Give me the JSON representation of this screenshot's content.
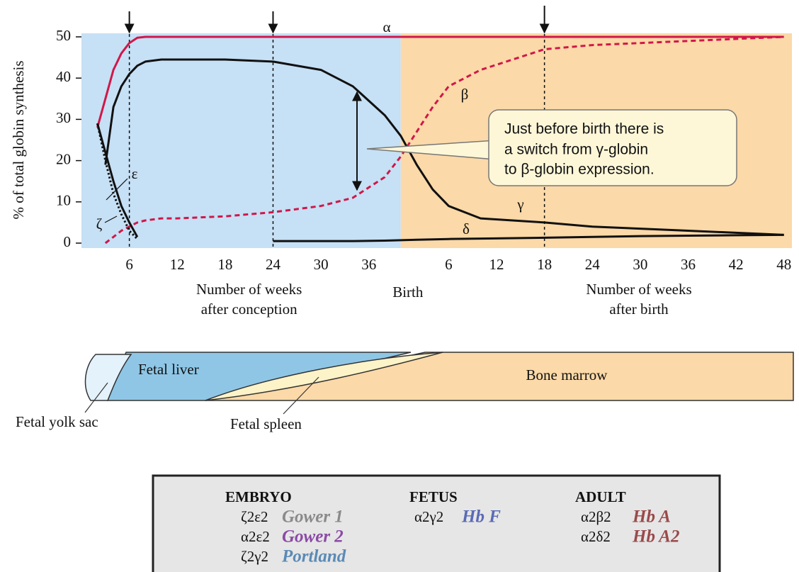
{
  "chart_data": {
    "type": "line",
    "ylabel": "% of total globin synthesis",
    "xlabel_left": [
      "Number of weeks",
      "after conception"
    ],
    "xlabel_right": [
      "Number of weeks",
      "after birth"
    ],
    "birth": {
      "value": 40,
      "label": "Birth"
    },
    "xlim": [
      0,
      89
    ],
    "ylim": [
      0,
      50
    ],
    "yticks": [
      0,
      10,
      20,
      30,
      40,
      50
    ],
    "xticks": [
      6,
      12,
      18,
      24,
      30,
      36,
      {
        "value": 46,
        "label": "6"
      },
      {
        "value": 52,
        "label": "12"
      },
      {
        "value": 58,
        "label": "18"
      },
      {
        "value": 64,
        "label": "24"
      },
      {
        "value": 70,
        "label": "30"
      },
      {
        "value": 76,
        "label": "36"
      },
      {
        "value": 82,
        "label": "42"
      },
      {
        "value": 88,
        "label": "48"
      }
    ],
    "arrows": [
      6,
      24,
      58
    ],
    "annotation": [
      "Just before birth there is",
      "a switch from γ-globin",
      "to β-globin expression."
    ],
    "x": [
      2,
      3,
      4,
      5,
      6,
      7,
      8,
      10,
      12,
      18,
      24,
      30,
      34,
      38,
      40,
      42,
      44,
      46,
      50,
      58,
      64,
      70,
      76,
      82,
      88
    ],
    "series": [
      {
        "name": "α",
        "color": "#d0174a",
        "style": "solid",
        "values": [
          28,
          35,
          42,
          46,
          48.5,
          49.8,
          50,
          50,
          50,
          50,
          50,
          50,
          50,
          50,
          50,
          50,
          50,
          50,
          50,
          50,
          50,
          50,
          50,
          50,
          50
        ]
      },
      {
        "name": "β",
        "color": "#d0174a",
        "style": "dashed",
        "values": [
          null,
          0,
          1.5,
          3,
          4,
          5,
          5.5,
          6,
          6,
          6.5,
          7.5,
          9,
          11,
          16,
          21,
          27,
          33,
          38,
          42,
          47,
          48,
          48.5,
          49,
          49.5,
          50
        ]
      },
      {
        "name": "γ",
        "color": "#111111",
        "style": "solid",
        "values": [
          null,
          19,
          33,
          38,
          41,
          43,
          44,
          44.5,
          44.5,
          44.5,
          44,
          42,
          38,
          31,
          26,
          19,
          13,
          9,
          6,
          5,
          4,
          3.5,
          3,
          2.5,
          2
        ]
      },
      {
        "name": "δ",
        "color": "#111111",
        "style": "solid",
        "values": [
          null,
          null,
          null,
          null,
          null,
          null,
          null,
          null,
          null,
          null,
          0.5,
          0.5,
          0.5,
          0.6,
          0.7,
          0.8,
          0.9,
          1,
          1.1,
          1.3,
          1.5,
          1.7,
          1.8,
          1.9,
          2
        ]
      },
      {
        "name": "ε",
        "color": "#111111",
        "style": "solid",
        "values": [
          29,
          22,
          15,
          9,
          5,
          1.5,
          null,
          null,
          null,
          null,
          null,
          null,
          null,
          null,
          null,
          null,
          null,
          null,
          null,
          null,
          null,
          null,
          null,
          null,
          null
        ]
      },
      {
        "name": "ζ",
        "color": "#111111",
        "style": "dotted",
        "values": [
          29,
          20,
          12,
          7,
          3,
          1,
          null,
          null,
          null,
          null,
          null,
          null,
          null,
          null,
          null,
          null,
          null,
          null,
          null,
          null,
          null,
          null,
          null,
          null,
          null
        ]
      }
    ]
  },
  "organs": {
    "yolk_sac": "Fetal yolk sac",
    "liver": "Fetal liver",
    "spleen": "Fetal spleen",
    "marrow": "Bone marrow"
  },
  "hemoglobins": [
    {
      "stage": "EMBRYO",
      "items": [
        {
          "formula": "ζ2ε2",
          "name": "Gower 1",
          "color": "#8a8a8a"
        },
        {
          "formula": "α2ε2",
          "name": "Gower 2",
          "color": "#8b4aa6"
        },
        {
          "formula": "ζ2γ2",
          "name": "Portland",
          "color": "#5b8ab5"
        }
      ]
    },
    {
      "stage": "FETUS",
      "items": [
        {
          "formula": "α2γ2",
          "name": "Hb F",
          "color": "#5a6bb5"
        }
      ]
    },
    {
      "stage": "ADULT",
      "items": [
        {
          "formula": "α2β2",
          "name": "Hb A",
          "color": "#9a4a4a"
        },
        {
          "formula": "α2δ2",
          "name": "Hb A2",
          "color": "#9a4a4a"
        }
      ]
    }
  ]
}
